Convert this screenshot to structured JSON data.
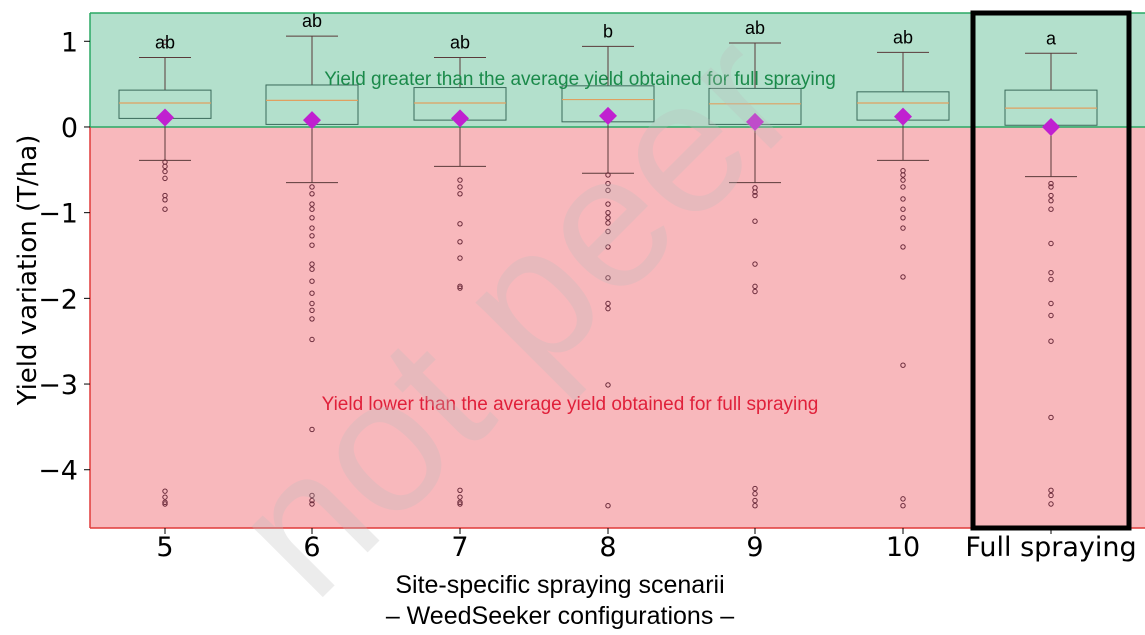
{
  "chart_data": {
    "type": "box",
    "ylabel": "Yield variation (T/ha)",
    "xlabel_lines": [
      "Site-specific spraying scenarii",
      "– WeedSeeker configurations –"
    ],
    "ylim": [
      -4.68,
      1.33
    ],
    "yticks": [
      1,
      0,
      -1,
      -2,
      -3,
      -4
    ],
    "ytick_labels": [
      "1",
      "0",
      "−1",
      "−2",
      "−3",
      "−4"
    ],
    "categories": [
      "5",
      "6",
      "7",
      "8",
      "9",
      "10",
      "Full spraying"
    ],
    "highlighted_category": "Full spraying",
    "regions": {
      "above": {
        "text": "Yield greater than the average yield obtained for full spraying",
        "color": "#b3e0cc",
        "text_color": "#1a8a4a"
      },
      "below": {
        "text": "Yield lower than the average yield obtained for full spraying",
        "color": "#f8b8bc",
        "text_color": "#e0203a"
      }
    },
    "boxes": [
      {
        "category": "5",
        "q1": 0.1,
        "median": 0.28,
        "q3": 0.43,
        "whisker_low": -0.39,
        "whisker_high": 0.81,
        "mean": 0.11,
        "letter": "ab",
        "outliers": [
          0.99,
          -0.41,
          -0.46,
          -0.52,
          -0.6,
          -0.8,
          -0.85,
          -0.96,
          -4.25,
          -4.32,
          -4.38,
          -4.4
        ]
      },
      {
        "category": "6",
        "q1": 0.03,
        "median": 0.31,
        "q3": 0.49,
        "whisker_low": -0.65,
        "whisker_high": 1.06,
        "mean": 0.08,
        "letter": "ab",
        "outliers": [
          -0.7,
          -0.78,
          -0.9,
          -0.96,
          -1.06,
          -1.18,
          -1.27,
          -1.38,
          -1.6,
          -1.66,
          -1.8,
          -1.94,
          -2.06,
          -2.14,
          -2.24,
          -2.48,
          -3.53,
          -4.3,
          -4.36,
          -4.4
        ]
      },
      {
        "category": "7",
        "q1": 0.08,
        "median": 0.28,
        "q3": 0.46,
        "whisker_low": -0.46,
        "whisker_high": 0.81,
        "mean": 0.1,
        "letter": "ab",
        "outliers": [
          -0.62,
          -0.7,
          -0.78,
          -1.13,
          -1.34,
          -1.53,
          -1.86,
          -1.88,
          -4.24,
          -4.32,
          -4.38,
          -4.4
        ]
      },
      {
        "category": "8",
        "q1": 0.06,
        "median": 0.32,
        "q3": 0.48,
        "whisker_low": -0.54,
        "whisker_high": 0.94,
        "mean": 0.13,
        "letter": "b",
        "outliers": [
          -0.56,
          -0.66,
          -0.74,
          -0.9,
          -1.0,
          -1.06,
          -1.12,
          -1.22,
          -1.4,
          -1.76,
          -2.06,
          -2.12,
          -3.01,
          -4.42
        ]
      },
      {
        "category": "9",
        "q1": 0.03,
        "median": 0.27,
        "q3": 0.45,
        "whisker_low": -0.65,
        "whisker_high": 0.98,
        "mean": 0.06,
        "letter": "ab",
        "outliers": [
          -0.71,
          -0.76,
          -0.8,
          -1.1,
          -1.6,
          -1.86,
          -1.92,
          -4.22,
          -4.28,
          -4.36,
          -4.42
        ]
      },
      {
        "category": "10",
        "q1": 0.08,
        "median": 0.28,
        "q3": 0.41,
        "whisker_low": -0.39,
        "whisker_high": 0.87,
        "mean": 0.12,
        "letter": "ab",
        "outliers": [
          -0.51,
          -0.56,
          -0.62,
          -0.7,
          -0.84,
          -0.96,
          -1.06,
          -1.18,
          -1.4,
          -1.75,
          -2.78,
          -4.34,
          -4.42
        ]
      },
      {
        "category": "Full spraying",
        "q1": 0.02,
        "median": 0.22,
        "q3": 0.43,
        "whisker_low": -0.58,
        "whisker_high": 0.86,
        "mean": 0.0,
        "letter": "a",
        "outliers": [
          -0.66,
          -0.7,
          -0.8,
          -0.86,
          -0.96,
          -1.36,
          -1.7,
          -1.78,
          -2.06,
          -2.2,
          -2.5,
          -3.39,
          -4.24,
          -4.3,
          -4.4
        ]
      }
    ],
    "colors": {
      "mean_marker": "#c020d0",
      "median": "#e0a060",
      "box_edge": "#3a6a5a",
      "whisker": "#5a3a3a",
      "outlier": "#6a2a3a",
      "highlight_frame": "#000000"
    },
    "watermark": "not peer"
  }
}
